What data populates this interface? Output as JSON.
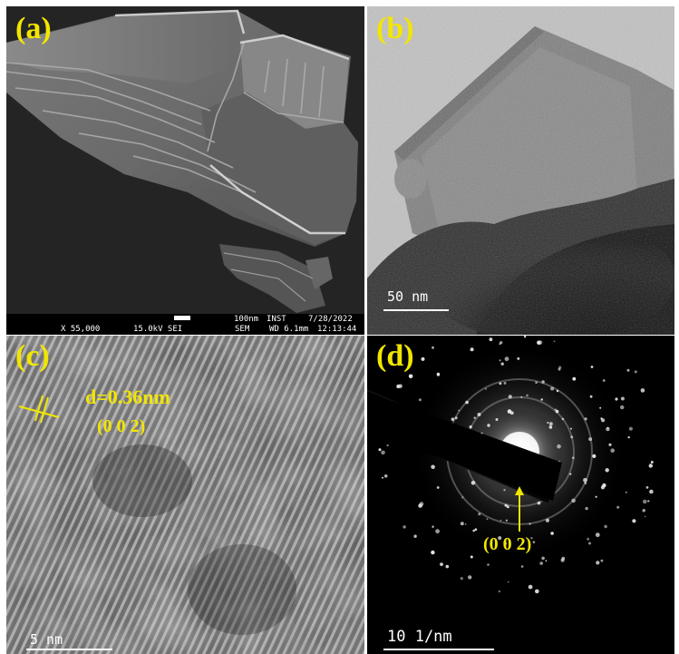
{
  "panels": {
    "a": {
      "label": "(a)",
      "info_bar": {
        "scale_text": "100nm",
        "inst": "INST",
        "date": "7/28/2022",
        "magnification": "X 55,000",
        "voltage": "15.0kV SEI",
        "mode": "SEM",
        "wd": "WD 6.1mm",
        "time": "12:13:44"
      }
    },
    "b": {
      "label": "(b)",
      "scale_bar": "50 nm"
    },
    "c": {
      "label": "(c)",
      "d_spacing": "d=0.36nm",
      "plane": "(0 0 2)",
      "scale_bar": "5 nm"
    },
    "d": {
      "label": "(d)",
      "plane": "(0 0 2)",
      "scale_bar": "10 1/nm"
    }
  },
  "colors": {
    "annotation": "#f2e600",
    "scale_text": "#ffffff"
  }
}
